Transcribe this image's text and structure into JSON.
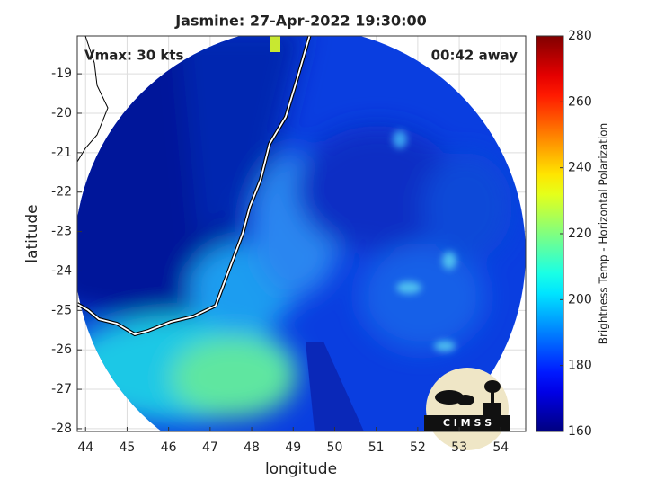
{
  "chart_data": {
    "type": "map",
    "title": "Jasmine: 27-Apr-2022 19:30:00",
    "annotations": [
      "Vmax: 30 kts",
      "00:42 away"
    ],
    "xlabel": "longitude",
    "ylabel": "latitude",
    "xlim": [
      43.8,
      54.6
    ],
    "ylim": [
      -28.07,
      -18.04
    ],
    "xticks": [
      44,
      45,
      46,
      47,
      48,
      49,
      50,
      51,
      52,
      53,
      54
    ],
    "yticks": [
      -19,
      -20,
      -21,
      -22,
      -23,
      -24,
      -25,
      -26,
      -27,
      -28
    ],
    "grid": true,
    "colorbar": {
      "label": "Brightness Temp - Horizontal Polarization",
      "colormap": "jet",
      "clim": [
        160,
        280
      ],
      "ticks": [
        160,
        180,
        200,
        220,
        240,
        260,
        280
      ]
    },
    "logo": "C I M S S"
  }
}
